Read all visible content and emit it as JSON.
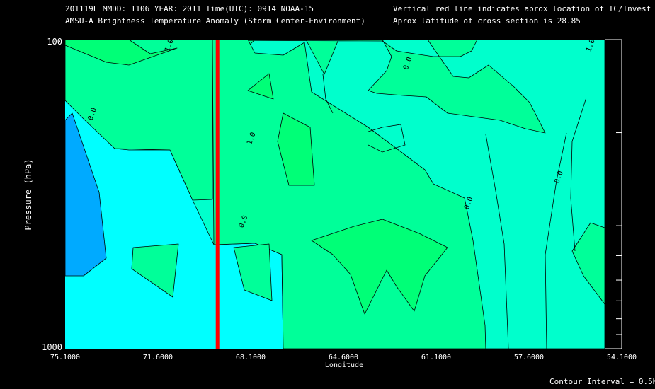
{
  "header": {
    "line1": "201119L  MMDD: 1106 YEAR: 2011 Time(UTC): 0914 NOAA-15",
    "line2": "AMSU-A Brightness Temperature Anomaly (Storm Center-Environment)",
    "line3": "Vertical red line indicates aprox location of TC/Invest",
    "line4": "Aprox latitude of cross section is 28.85"
  },
  "footer": {
    "contour_interval": "Contour Interval = 0.5K"
  },
  "colors": {
    "background": "#000000",
    "level_0": "#00aaff",
    "level_1": "#00ffff",
    "level_2": "#00ffcc",
    "level_3": "#00ff99",
    "level_4": "#00ff77",
    "tc_line": "#ff0000"
  },
  "chart_data": {
    "type": "contour",
    "title": "AMSU-A Brightness Temperature Anomaly (Storm Center-Environment)",
    "xlabel": "Longitude",
    "ylabel": "Pressure (hPa)",
    "x_ticks": [
      75.1,
      71.6,
      68.1,
      64.6,
      61.1,
      57.6,
      54.1
    ],
    "x_tick_labels": [
      "75.1000",
      "71.6000",
      "68.1000",
      "64.6000",
      "61.1000",
      "57.6000",
      "54.1000"
    ],
    "xlim": [
      75.1,
      54.1
    ],
    "y_tick_labels": [
      "100",
      "1000"
    ],
    "ylim": [
      100,
      1000
    ],
    "y_scale": "log",
    "y_minor_ticks": [
      200,
      300,
      400,
      500,
      600,
      700,
      800,
      900
    ],
    "contour_labels": [
      {
        "text": "1.0",
        "lon": 71.1,
        "p": 105
      },
      {
        "text": "0.0",
        "lon": 74.0,
        "p": 175
      },
      {
        "text": "1.0",
        "lon": 68.0,
        "p": 210
      },
      {
        "text": "0.0",
        "lon": 68.3,
        "p": 390
      },
      {
        "text": "0.0",
        "lon": 62.1,
        "p": 120
      },
      {
        "text": "0.0",
        "lon": 59.8,
        "p": 340
      },
      {
        "text": "0.0",
        "lon": 56.4,
        "p": 280
      },
      {
        "text": "1.0",
        "lon": 55.2,
        "p": 105
      }
    ],
    "tc_longitude": 69.35,
    "contour_interval": 0.5
  }
}
